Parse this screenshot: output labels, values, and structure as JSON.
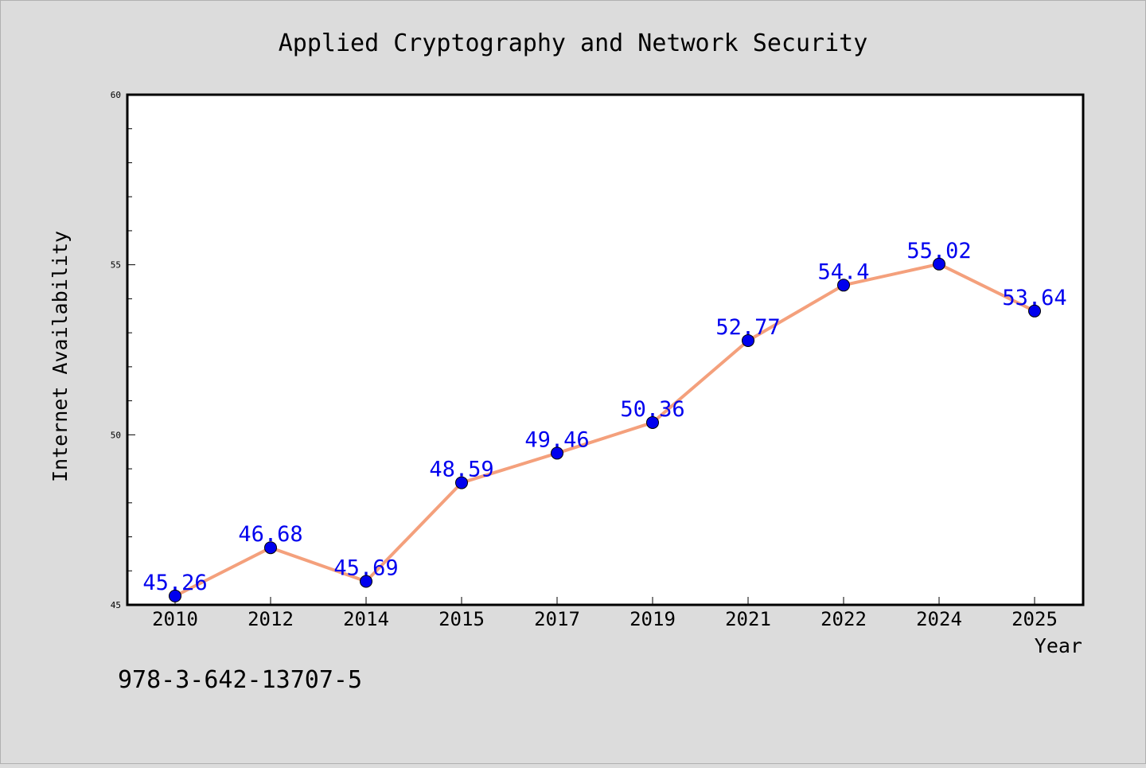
{
  "chart_data": {
    "type": "line",
    "title": "Applied Cryptography and Network Security",
    "xlabel": "Year",
    "ylabel": "Internet Availability",
    "categories": [
      "2010",
      "2012",
      "2014",
      "2015",
      "2017",
      "2019",
      "2021",
      "2022",
      "2024",
      "2025"
    ],
    "values": [
      45.26,
      46.68,
      45.69,
      48.59,
      49.46,
      50.36,
      52.77,
      54.4,
      55.02,
      53.64
    ],
    "data_labels": [
      "45.26",
      "46.68",
      "45.69",
      "48.59",
      "49.46",
      "50.36",
      "52.77",
      "54.4",
      "55.02",
      "53.64"
    ],
    "ylim": [
      45,
      60
    ],
    "yticks": [
      45,
      50,
      55,
      60
    ],
    "y_minor_step": 1,
    "grid": false,
    "legend": "none",
    "colors": {
      "background": "#dcdcdc",
      "plot_background": "#ffffff",
      "line": "#f4a07c",
      "marker": "#0000ee",
      "data_label": "#0000ee",
      "text": "#000000"
    }
  },
  "footer": {
    "isbn": "978-3-642-13707-5"
  }
}
